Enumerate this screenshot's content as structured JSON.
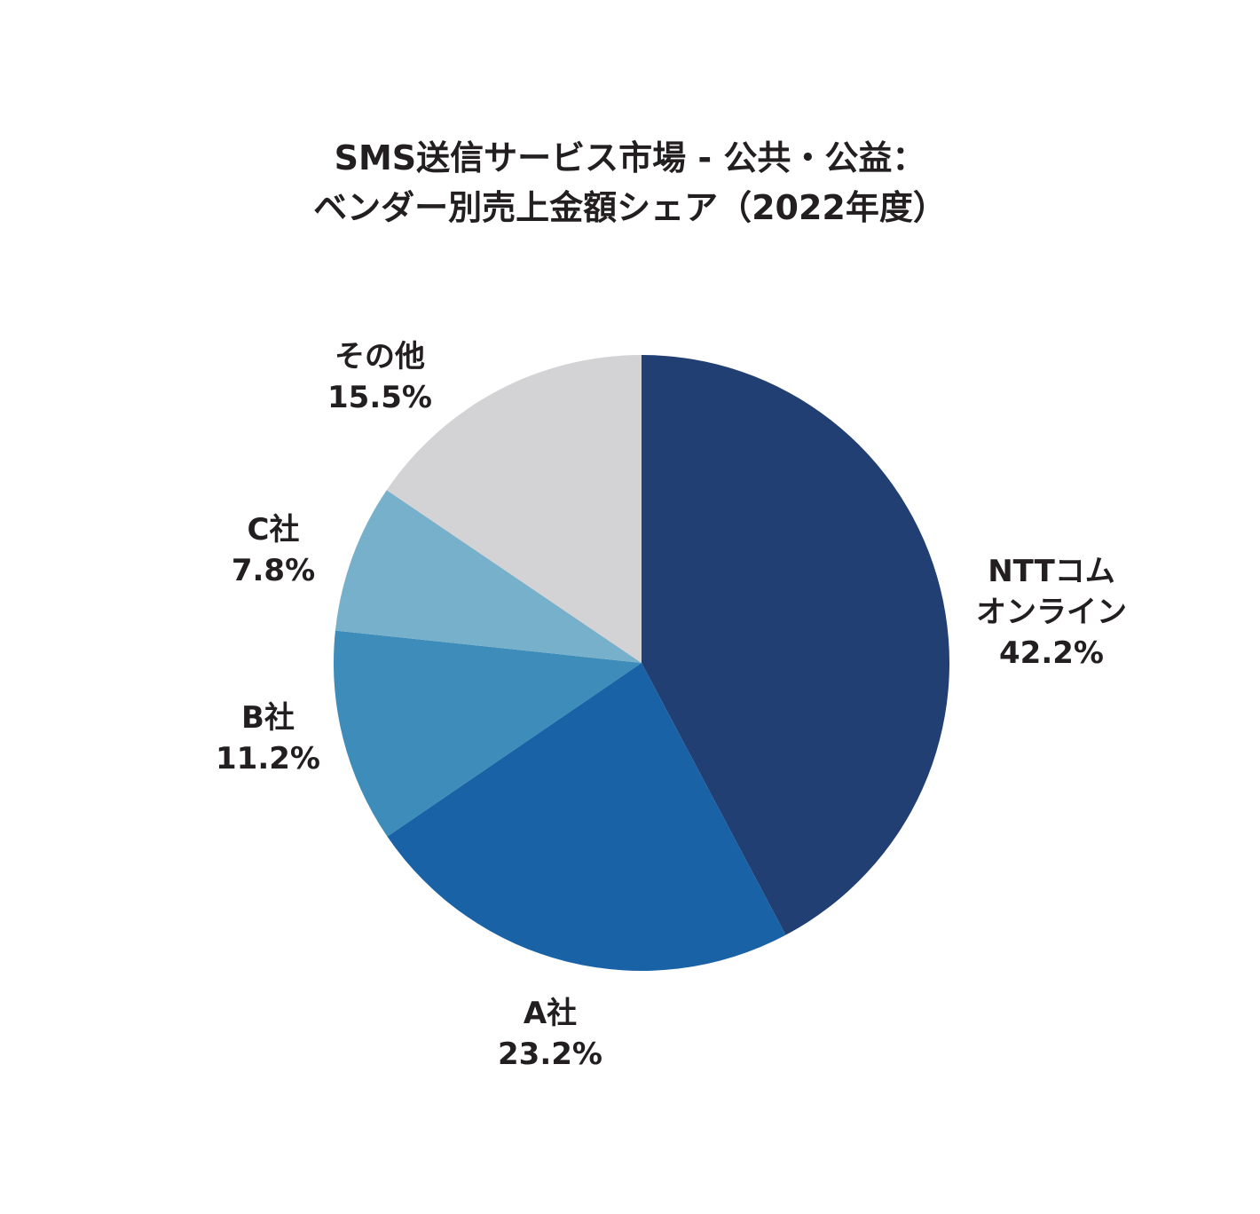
{
  "chart_data": {
    "type": "pie",
    "title": "SMS送信サービス市場 - 公共・公益：\nベンダー別売上金額シェア（2022年度）",
    "categories": [
      "NTTコム\nオンライン",
      "A社",
      "B社",
      "C社",
      "その他"
    ],
    "values": [
      42.2,
      23.2,
      11.2,
      7.8,
      15.5
    ],
    "value_labels": [
      "42.2%",
      "23.2%",
      "11.2%",
      "7.8%",
      "15.5%"
    ],
    "colors": [
      "#213f73",
      "#1a62a6",
      "#3d8cba",
      "#76b0cb",
      "#d3d3d6"
    ]
  }
}
